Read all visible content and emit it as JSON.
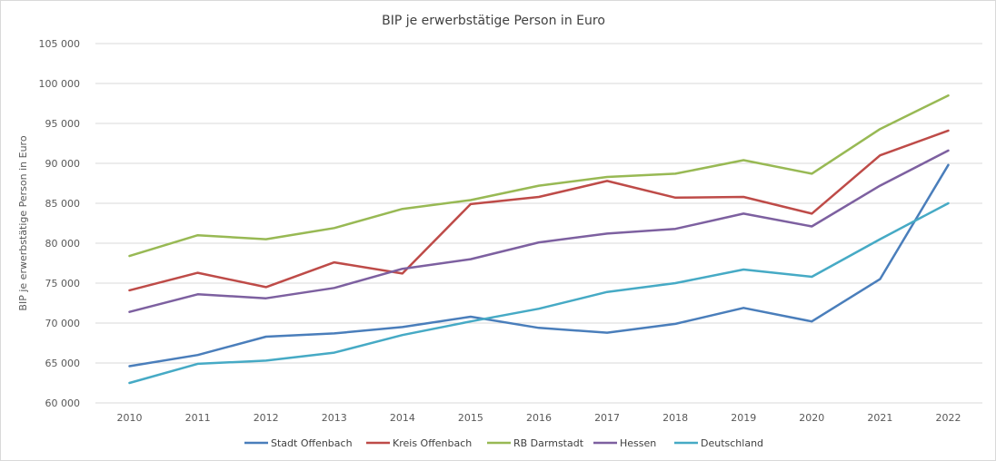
{
  "chart_data": {
    "type": "line",
    "title": "BIP je erwerbstätige Person in Euro",
    "xlabel": "",
    "ylabel": "BIP je erwerbstätige Person in Euro",
    "ylim": [
      60000,
      105000
    ],
    "y_ticks": [
      "60 000",
      "65 000",
      "70 000",
      "75 000",
      "80 000",
      "85 000",
      "90 000",
      "95 000",
      "100 000",
      "105 000"
    ],
    "y_tick_values": [
      60000,
      65000,
      70000,
      75000,
      80000,
      85000,
      90000,
      95000,
      100000,
      105000
    ],
    "categories": [
      "2010",
      "2011",
      "2012",
      "2013",
      "2014",
      "2015",
      "2016",
      "2017",
      "2018",
      "2019",
      "2020",
      "2021",
      "2022"
    ],
    "grid": "horizontal",
    "legend_position": "bottom",
    "series": [
      {
        "name": "Stadt Offenbach",
        "color": "#4a7ebb",
        "values": [
          64600,
          66000,
          68300,
          68700,
          69500,
          70800,
          69400,
          68800,
          69900,
          71900,
          70200,
          75500,
          89800
        ]
      },
      {
        "name": "Kreis Offenbach",
        "color": "#be4b48",
        "values": [
          74100,
          76300,
          74500,
          77600,
          76200,
          84900,
          85800,
          87800,
          85700,
          85800,
          83700,
          91000,
          94100
        ]
      },
      {
        "name": "RB Darmstadt",
        "color": "#98b954",
        "values": [
          78400,
          81000,
          80500,
          81900,
          84300,
          85400,
          87200,
          88300,
          88700,
          90400,
          88700,
          94300,
          98500
        ]
      },
      {
        "name": "Hessen",
        "color": "#7d60a0",
        "values": [
          71400,
          73600,
          73100,
          74400,
          76800,
          78000,
          80100,
          81200,
          81800,
          83700,
          82100,
          87200,
          91600
        ]
      },
      {
        "name": "Deutschland",
        "color": "#46aac5",
        "values": [
          62500,
          64900,
          65300,
          66300,
          68500,
          70200,
          71800,
          73900,
          75000,
          76700,
          75800,
          80500,
          85000
        ]
      }
    ]
  }
}
